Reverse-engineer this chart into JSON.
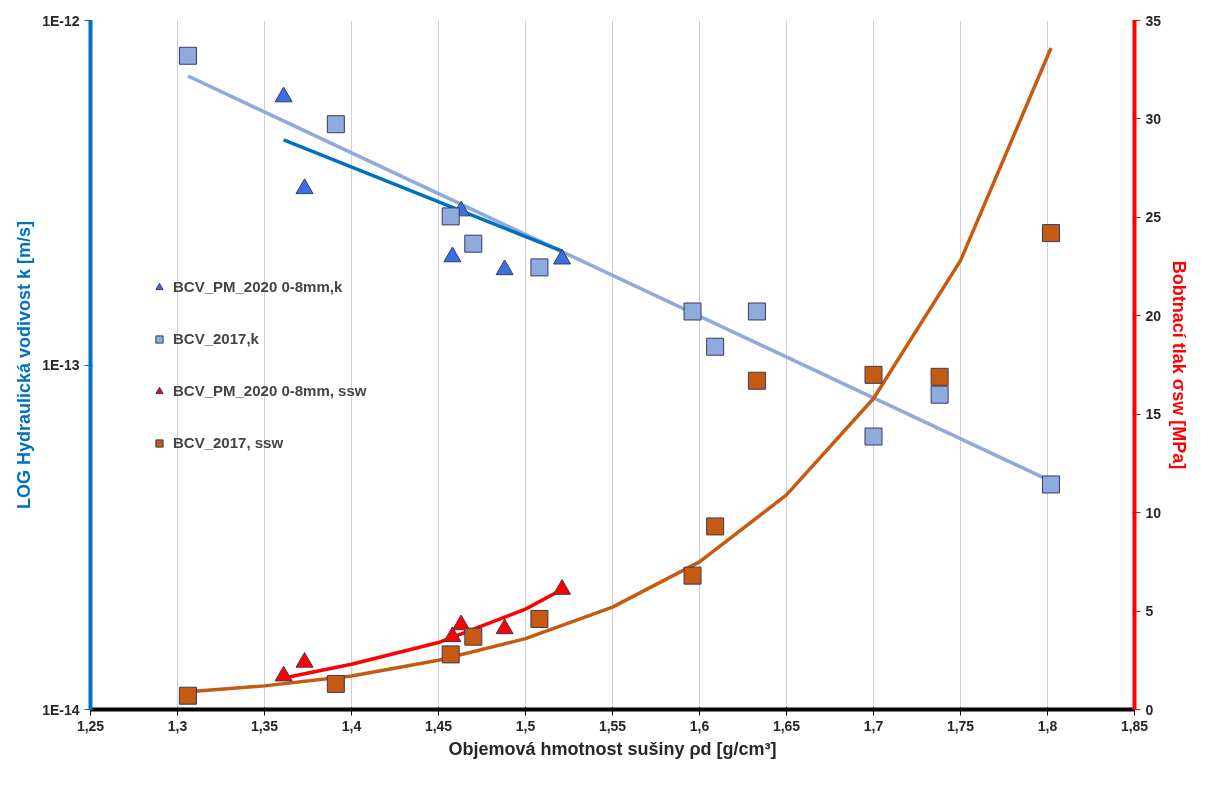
{
  "chart_data": {
    "type": "scatter",
    "xlabel": "Objemová hmotnost sušiny ρd [g/cm³]",
    "ylabel": "LOG Hydraulická vodivost k [m/s]",
    "y2label": "Bobtnací tlak σsw [MPa]",
    "log": "y",
    "grid": true,
    "legend": "left",
    "xlim": [
      1.25,
      1.85
    ],
    "xticks": [
      {
        "value": 1.25,
        "label": "1,25"
      },
      {
        "value": 1.3,
        "label": "1,3"
      },
      {
        "value": 1.35,
        "label": "1,35"
      },
      {
        "value": 1.4,
        "label": "1,4"
      },
      {
        "value": 1.45,
        "label": "1,45"
      },
      {
        "value": 1.5,
        "label": "1,5"
      },
      {
        "value": 1.55,
        "label": "1,55"
      },
      {
        "value": 1.6,
        "label": "1,6"
      },
      {
        "value": 1.65,
        "label": "1,65"
      },
      {
        "value": 1.7,
        "label": "1,7"
      },
      {
        "value": 1.75,
        "label": "1,75"
      },
      {
        "value": 1.8,
        "label": "1,8"
      },
      {
        "value": 1.85,
        "label": "1,85"
      }
    ],
    "ylim": [
      1e-14,
      1e-12
    ],
    "yticks": [
      {
        "value": 1e-14,
        "label": "1E-14"
      },
      {
        "value": 1e-13,
        "label": "1E-13"
      },
      {
        "value": 1e-12,
        "label": "1E-12"
      }
    ],
    "y2lim": [
      0,
      35
    ],
    "y2ticks": [
      0,
      5,
      10,
      15,
      20,
      25,
      30,
      35
    ],
    "series": [
      {
        "name": "BCV_PM_2020 0-8mm,k",
        "marker": "triangle",
        "color": "#3a6fe8",
        "x": [
          1.361,
          1.373,
          1.463,
          1.458,
          1.488,
          1.521
        ],
        "values": [
          6e-13,
          3.25e-13,
          2.8e-13,
          2.06e-13,
          1.89e-13,
          2.03e-13
        ]
      },
      {
        "name": "BCV_2017,k",
        "marker": "square",
        "color": "#8faadc",
        "x": [
          1.306,
          1.391,
          1.457,
          1.47,
          1.508,
          1.596,
          1.609,
          1.633,
          1.7,
          1.738,
          1.802
        ],
        "values": [
          7.9e-13,
          5e-13,
          2.7e-13,
          2.25e-13,
          1.92e-13,
          1.43e-13,
          1.13e-13,
          1.43e-13,
          6.2e-14,
          8.2e-14,
          4.5e-14
        ]
      },
      {
        "name": "BCV_PM_2020 0-8mm, ssw",
        "marker": "triangle",
        "axis": "y2",
        "color": "#ff0000",
        "x": [
          1.361,
          1.373,
          1.463,
          1.458,
          1.488,
          1.521
        ],
        "values": [
          1.7,
          2.4,
          4.3,
          3.7,
          4.1,
          6.1
        ]
      },
      {
        "name": "BCV_2017, ssw",
        "marker": "square",
        "axis": "y2",
        "color": "#c55a11",
        "x": [
          1.306,
          1.391,
          1.457,
          1.47,
          1.508,
          1.596,
          1.609,
          1.633,
          1.7,
          1.738,
          1.802
        ],
        "values": [
          0.7,
          1.3,
          2.8,
          3.7,
          4.6,
          6.8,
          9.3,
          16.7,
          17.0,
          16.9,
          24.2
        ]
      },
      {
        "type": "line",
        "color": "#8faadc",
        "x": [
          1.306,
          1.802
        ],
        "values": [
          6.9e-13,
          4.6e-14
        ]
      },
      {
        "type": "line",
        "color": "#0070c0",
        "x": [
          1.361,
          1.521
        ],
        "values": [
          4.5e-13,
          2.14e-13
        ]
      },
      {
        "type": "line",
        "axis": "y2",
        "color": "#c55a11",
        "x": [
          1.306,
          1.35,
          1.4,
          1.45,
          1.5,
          1.55,
          1.6,
          1.65,
          1.7,
          1.75,
          1.802
        ],
        "values": [
          0.9,
          1.2,
          1.7,
          2.5,
          3.6,
          5.2,
          7.5,
          10.9,
          15.8,
          22.8,
          33.6
        ]
      },
      {
        "type": "line",
        "axis": "y2",
        "color": "#ff0000",
        "x": [
          1.361,
          1.4,
          1.45,
          1.5,
          1.521
        ],
        "values": [
          1.6,
          2.3,
          3.4,
          5.1,
          6.1
        ]
      }
    ]
  }
}
